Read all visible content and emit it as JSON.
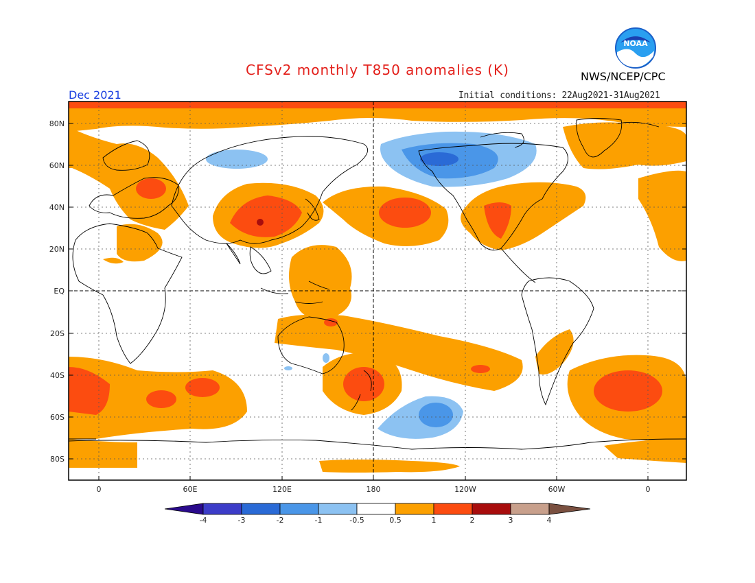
{
  "header": {
    "title": "CFSv2 monthly T850 anomalies (K)",
    "agency": "NWS/NCEP/CPC",
    "logo_text": "NOAA",
    "valid_month": "Dec 2021",
    "initial_conditions": "Initial conditions: 22Aug2021-31Aug2021"
  },
  "axes": {
    "lat_labels": [
      "80N",
      "60N",
      "40N",
      "20N",
      "EQ",
      "20S",
      "40S",
      "60S",
      "80S"
    ],
    "lon_labels": [
      "0",
      "60E",
      "120E",
      "180",
      "120W",
      "60W",
      "0"
    ]
  },
  "colorbar": {
    "levels": [
      "-4",
      "-3",
      "-2",
      "-1",
      "-0.5",
      "0.5",
      "1",
      "2",
      "3",
      "4"
    ],
    "colors": [
      "#2a0a8c",
      "#3c3cc8",
      "#2a6ad6",
      "#4a96e8",
      "#8cc2f2",
      "#ffffff",
      "#fca000",
      "#fc4c10",
      "#a80d0d",
      "#c8a08c",
      "#7a5040"
    ]
  },
  "colors": {
    "weak_warm": "#fca000",
    "moderate_warm": "#fc4c10",
    "strong_warm": "#a80d0d",
    "weak_cold": "#8cc2f2",
    "moderate_cold": "#4a96e8",
    "strong_cold": "#2a6ad6"
  }
}
